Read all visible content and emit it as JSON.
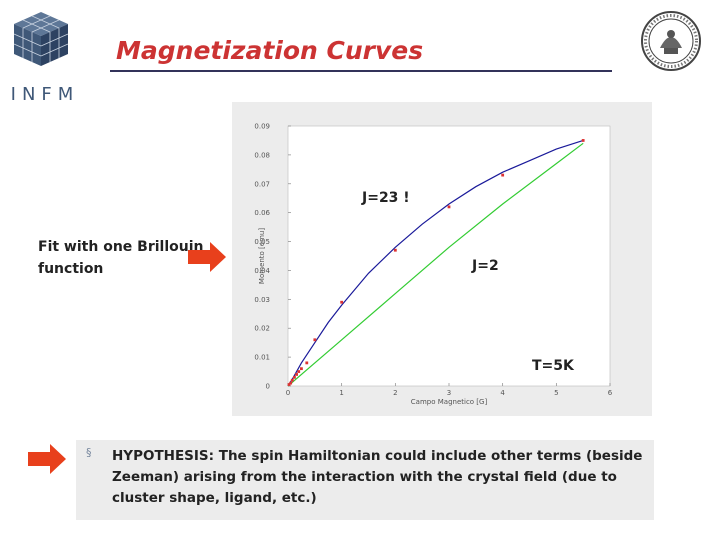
{
  "slide": {
    "title": "Magnetization Curves",
    "logo_text": "INFM",
    "fit_label": "Fit with one Brillouin function",
    "bullet_symbol": "§",
    "hypothesis": "HYPOTHESIS: The spin Hamiltonian could include other terms (beside Zeeman) arising from the interaction with the crystal field (due to cluster shape, ligand, etc.)",
    "colors": {
      "title": "#cc3333",
      "title_rule": "#33335a",
      "logo": "#3f5878",
      "arrow": "#e8401c",
      "panel_bg": "#ececec"
    },
    "icons": {
      "logo": "infm-cube-logo-icon",
      "seal": "university-seal-icon",
      "arrow": "right-arrow-icon",
      "bullet": "square-bullet-icon"
    }
  },
  "chart_data": {
    "type": "line",
    "xlabel": "Campo Magnetico [G]",
    "ylabel": "Momento [emu]",
    "xlim": [
      0,
      6
    ],
    "ylim": [
      0,
      0.09
    ],
    "x_ticks": [
      "0",
      "1",
      "2",
      "3",
      "4",
      "5",
      "6"
    ],
    "y_ticks": [
      "0",
      "0.01",
      "0.02",
      "0.03",
      "0.04",
      "0.05",
      "0.06",
      "0.07",
      "0.08",
      "0.09"
    ],
    "grid": false,
    "annotations": [
      "J=23 !",
      "J=2",
      "T=5K"
    ],
    "series": [
      {
        "name": "J=23 !",
        "kind": "line",
        "color": "#1a1a9a",
        "x": [
          0,
          0.1,
          0.25,
          0.5,
          0.75,
          1.0,
          1.5,
          2.0,
          2.5,
          3.0,
          3.5,
          4.0,
          4.5,
          5.0,
          5.5
        ],
        "y": [
          0,
          0.003,
          0.008,
          0.015,
          0.022,
          0.028,
          0.039,
          0.048,
          0.056,
          0.063,
          0.069,
          0.074,
          0.078,
          0.082,
          0.085
        ]
      },
      {
        "name": "J=2",
        "kind": "line",
        "color": "#33cc33",
        "x": [
          0,
          1,
          2,
          3,
          4,
          5,
          5.5
        ],
        "y": [
          0,
          0.016,
          0.032,
          0.048,
          0.063,
          0.077,
          0.084
        ]
      },
      {
        "name": "",
        "kind": "scatter",
        "color": "#dd3333",
        "x": [
          0.02,
          0.05,
          0.08,
          0.12,
          0.16,
          0.2,
          0.25,
          0.35,
          0.5,
          1.0,
          2.0,
          3.0,
          4.0,
          5.5
        ],
        "y": [
          0.0005,
          0.001,
          0.002,
          0.003,
          0.004,
          0.005,
          0.006,
          0.008,
          0.016,
          0.029,
          0.047,
          0.062,
          0.073,
          0.085
        ]
      }
    ]
  }
}
